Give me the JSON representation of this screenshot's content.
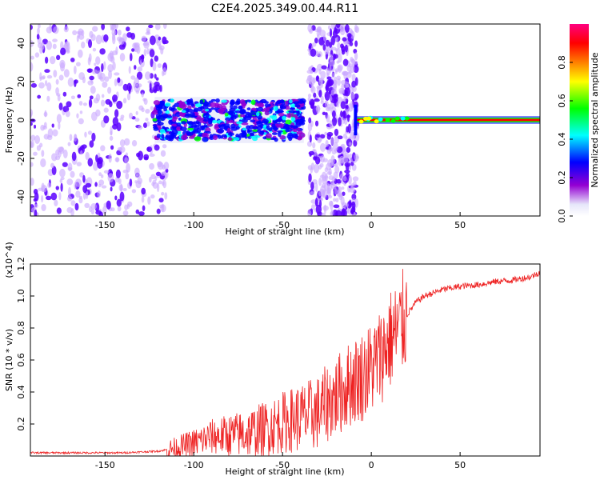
{
  "title": "C2E4.2025.349.00.44.R11",
  "colors": {
    "line": "#ee2222",
    "spec_dots": "#7a2cff",
    "spec_dark": "#5b00ff",
    "colormap": [
      "#ffffff",
      "#e6e6fa",
      "#9400d3",
      "#0000ff",
      "#00ffff",
      "#00ff00",
      "#ffff00",
      "#ff7f00",
      "#ff0000",
      "#ff0080"
    ]
  },
  "chart_data": [
    {
      "type": "heatmap",
      "name": "spectrogram",
      "xlabel": "Height of straight line (km)",
      "ylabel": "Frequency (Hz)",
      "xlim": [
        -192,
        95
      ],
      "ylim": [
        -50,
        50
      ],
      "xticks": [
        -150,
        -100,
        -50,
        0,
        50
      ],
      "yticks": [
        -40,
        -20,
        0,
        20,
        40
      ],
      "colorbar": {
        "label": "Normalized spectral amplitude",
        "range": [
          0,
          1
        ],
        "ticks": [
          "0.0",
          "0.2",
          "0.4",
          "0.6",
          "0.8"
        ]
      },
      "regions": [
        {
          "x_from": -192,
          "x_to": -115,
          "f_from": -50,
          "f_to": 50,
          "amplitude": 0.25,
          "note": "broadband noise"
        },
        {
          "x_from": -122,
          "x_to": -38,
          "f_from": -12,
          "f_to": 12,
          "amplitude": 0.4,
          "note": "central band"
        },
        {
          "x_from": -35,
          "x_to": -8,
          "f_from": -50,
          "f_to": 50,
          "amplitude": 0.2,
          "note": "broadband noise"
        },
        {
          "x_from": -8,
          "x_to": 95,
          "f_from": -1,
          "f_to": 1,
          "amplitude": 1.0,
          "note": "narrow tone near 0 Hz"
        }
      ]
    },
    {
      "type": "line",
      "name": "snr",
      "xlabel": "Height of straight line (km)",
      "ylabel": "SNR (10 * v/v)",
      "y_multiplier": "(x10^4)",
      "xlim": [
        -192,
        95
      ],
      "ylim": [
        0,
        1.2
      ],
      "xticks": [
        -150,
        -100,
        -50,
        0,
        50
      ],
      "yticks": [
        0.2,
        0.4,
        0.6,
        0.8,
        1.0,
        1.2
      ],
      "series": [
        {
          "name": "SNR",
          "x": [
            -192,
            -180,
            -160,
            -140,
            -120,
            -110,
            -100,
            -90,
            -80,
            -70,
            -60,
            -50,
            -40,
            -30,
            -25,
            -20,
            -15,
            -10,
            -5,
            0,
            5,
            10,
            15,
            20,
            25,
            30,
            40,
            50,
            60,
            70,
            80,
            90,
            95
          ],
          "y": [
            0.02,
            0.02,
            0.02,
            0.02,
            0.03,
            0.05,
            0.08,
            0.12,
            0.13,
            0.14,
            0.17,
            0.21,
            0.24,
            0.27,
            0.33,
            0.37,
            0.42,
            0.47,
            0.5,
            0.55,
            0.62,
            0.72,
            0.78,
            0.88,
            0.96,
            1.0,
            1.04,
            1.06,
            1.07,
            1.09,
            1.1,
            1.12,
            1.15
          ]
        }
      ]
    }
  ]
}
